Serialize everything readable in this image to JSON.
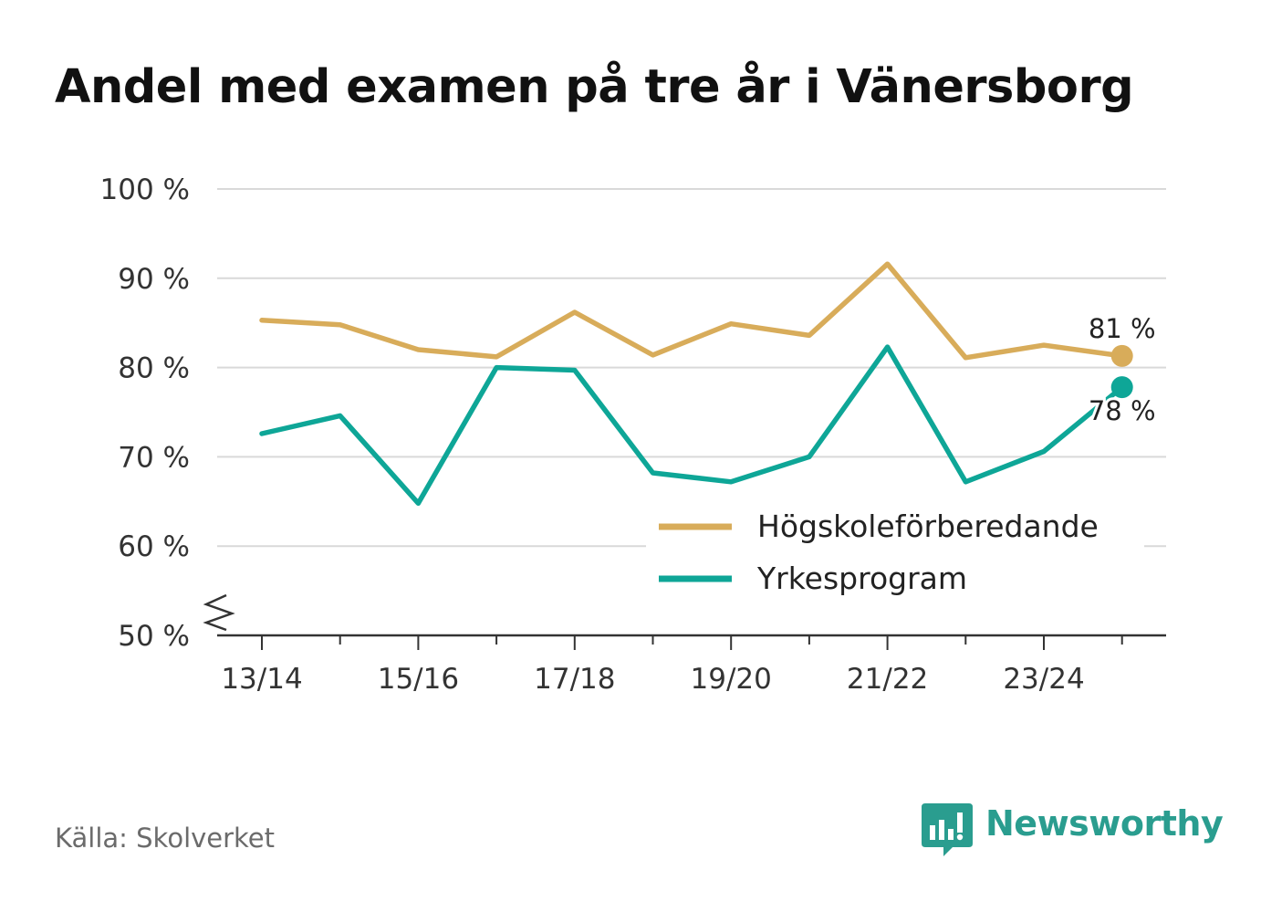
{
  "title": "Andel med examen på tre år i Vänersborg",
  "source": "Källa: Skolverket",
  "brand": "Newsworthy",
  "colors": {
    "hogskole": "#d8ac5a",
    "yrkes": "#0ea697",
    "grid": "#d9d9d9",
    "axis": "#333333"
  },
  "chart_data": {
    "type": "line",
    "title": "Andel med examen på tre år i Vänersborg",
    "xlabel": "",
    "ylabel": "",
    "ylim": [
      50,
      100
    ],
    "y_ticks": [
      50,
      60,
      70,
      80,
      90,
      100
    ],
    "y_tick_labels": [
      "50 %",
      "60 %",
      "70 %",
      "80 %",
      "90 %",
      "100 %"
    ],
    "y_axis_break": true,
    "categories": [
      "13/14",
      "14/15",
      "15/16",
      "16/17",
      "17/18",
      "18/19",
      "19/20",
      "20/21",
      "21/22",
      "22/23",
      "23/24",
      "24/25"
    ],
    "x_tick_labels": [
      "13/14",
      "15/16",
      "17/18",
      "19/20",
      "21/22",
      "23/24"
    ],
    "legend_position": "bottom-right",
    "series": [
      {
        "name": "Högskoleförberedande",
        "color": "#d8ac5a",
        "values": [
          85.3,
          84.8,
          82.0,
          81.2,
          86.2,
          81.4,
          84.9,
          83.6,
          91.6,
          81.1,
          82.5,
          81.3
        ],
        "end_label": "81 %"
      },
      {
        "name": "Yrkesprogram",
        "color": "#0ea697",
        "values": [
          72.6,
          74.6,
          64.8,
          80.0,
          79.7,
          68.2,
          67.2,
          70.0,
          82.3,
          67.2,
          70.6,
          77.8
        ],
        "end_label": "78 %"
      }
    ]
  }
}
